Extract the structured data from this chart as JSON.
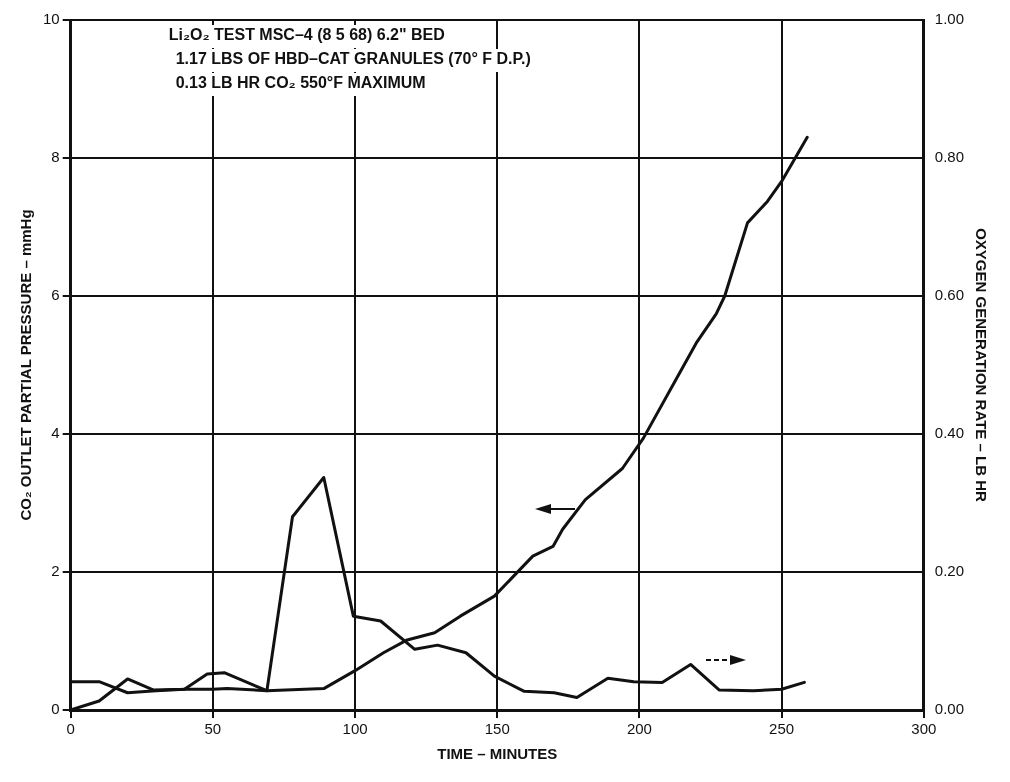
{
  "chart_data": {
    "type": "line",
    "title": "Li₂O₂ TEST MSC–4 (8 5 68) 6.2\" BED",
    "subtitle": "1.17 LBS OF HBD–CAT GRANULES (70° F D.P.)",
    "annotations": [
      "0.13 LB HR CO₂ 550°F MAXIMUM"
    ],
    "xlabel": "TIME – MINUTES",
    "ylabel": "CO₂ OUTLET PARTIAL PRESSURE – mmHg",
    "y2label": "OXYGEN GENERATION RATE – LB HR",
    "xlim": [
      0,
      300
    ],
    "xticks": [
      0,
      50,
      100,
      150,
      200,
      250,
      300
    ],
    "ylim": [
      0,
      10
    ],
    "yticks": [
      0,
      2,
      4,
      6,
      8,
      10
    ],
    "y2lim": [
      0,
      1
    ],
    "y2ticks": [
      {
        "value": 0,
        "label": "0.00"
      },
      {
        "value": 0.2,
        "label": "0.20"
      },
      {
        "value": 0.4,
        "label": "0.40"
      },
      {
        "value": 0.6,
        "label": "0.60"
      },
      {
        "value": 0.8,
        "label": "0.80"
      },
      {
        "value": 1,
        "label": "1.00"
      }
    ],
    "grid": true,
    "legend": false,
    "marker": "none",
    "line_style": "solid",
    "series": [
      {
        "color": "#111111",
        "x": [
          0,
          10,
          20,
          29,
          40,
          48,
          54,
          69,
          89,
          100,
          110,
          118,
          128,
          137,
          149,
          162.5,
          169.6,
          173,
          181,
          194,
          201.4,
          213,
          220,
          227,
          230,
          238,
          245,
          250,
          259
        ],
        "values": [
          0,
          0.13,
          0.45,
          0.29,
          0.3,
          0.52,
          0.54,
          0.28,
          0.31,
          0.57,
          0.83,
          1.01,
          1.12,
          1.36,
          1.65,
          2.23,
          2.37,
          2.62,
          3.05,
          3.5,
          3.94,
          4.8,
          5.32,
          5.74,
          6.0,
          7.06,
          7.37,
          7.66,
          8.3
        ]
      },
      {
        "color": "#111111",
        "axis": "y2",
        "x": [
          0,
          10,
          20,
          30,
          40,
          50,
          55,
          69,
          78,
          89,
          99.4,
          109,
          121,
          129,
          139,
          149,
          159.5,
          170,
          178,
          188.9,
          198,
          208,
          218,
          228,
          240,
          250,
          258
        ],
        "values": [
          0.041,
          0.041,
          0.025,
          0.028,
          0.03,
          0.03,
          0.031,
          0.028,
          0.28,
          0.337,
          0.136,
          0.129,
          0.088,
          0.094,
          0.083,
          0.049,
          0.027,
          0.025,
          0.018,
          0.046,
          0.041,
          0.04,
          0.066,
          0.029,
          0.028,
          0.03,
          0.04
        ]
      }
    ]
  }
}
